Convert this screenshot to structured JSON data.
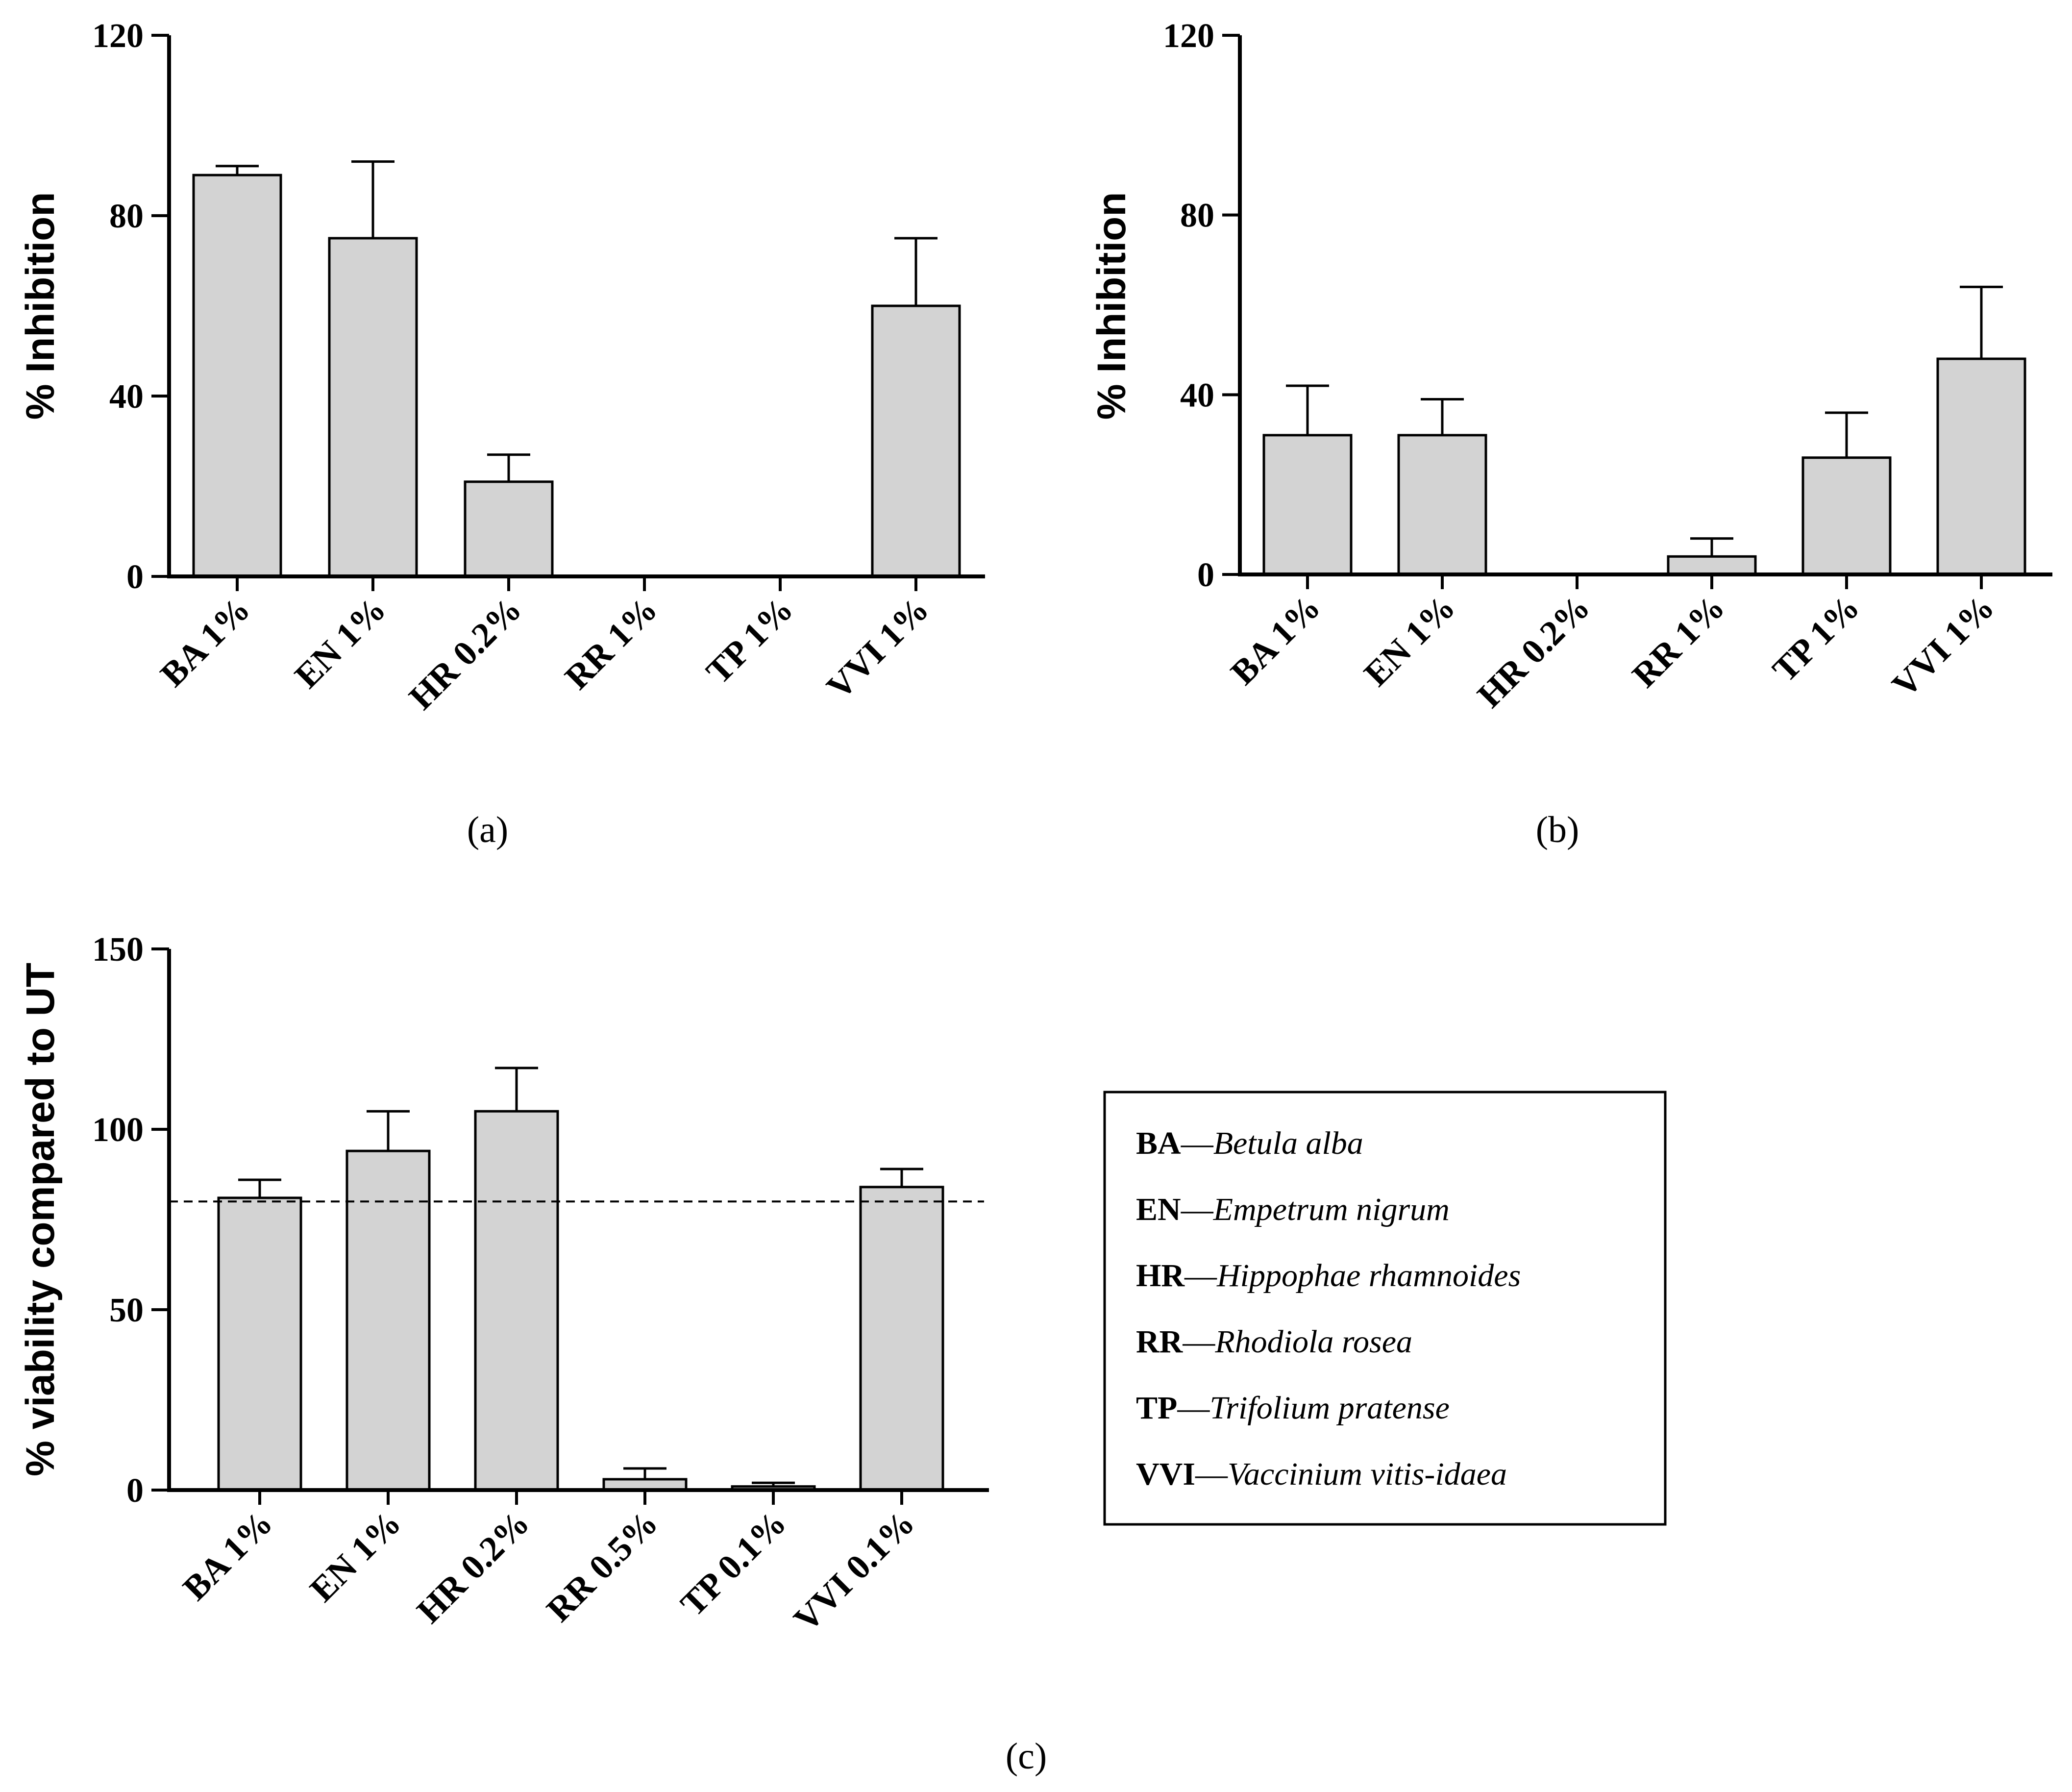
{
  "chart_data": [
    {
      "type": "bar",
      "panel": "(a)",
      "categories": [
        "BA 1%",
        "EN 1%",
        "HR 0.2%",
        "RR 1%",
        "TP 1%",
        "VVI 1%"
      ],
      "values": [
        89,
        75,
        21,
        0,
        0,
        60
      ],
      "errors": [
        2,
        17,
        6,
        0,
        0,
        15
      ],
      "ylabel": "% Inhibition",
      "ylim": [
        0,
        120
      ],
      "yticks": [
        0,
        40,
        80,
        120
      ],
      "grid": false
    },
    {
      "type": "bar",
      "panel": "(b)",
      "categories": [
        "BA 1%",
        "EN 1%",
        "HR 0.2%",
        "RR 1%",
        "TP 1%",
        "VVI 1%"
      ],
      "values": [
        31,
        31,
        0,
        4,
        26,
        48
      ],
      "errors": [
        11,
        8,
        0,
        4,
        10,
        16
      ],
      "ylabel": "% Inhibition",
      "ylim": [
        0,
        120
      ],
      "yticks": [
        0,
        40,
        80,
        120
      ],
      "grid": false
    },
    {
      "type": "bar",
      "panel": "(c)",
      "categories": [
        "BA 1%",
        "EN 1%",
        "HR 0.2%",
        "RR 0.5%",
        "TP 0.1%",
        "VVI 0.1%"
      ],
      "values": [
        81,
        94,
        105,
        3,
        1,
        84
      ],
      "errors": [
        5,
        11,
        12,
        3,
        1,
        5
      ],
      "ylabel": "% viability compared to UT",
      "ylim": [
        0,
        150
      ],
      "yticks": [
        0,
        50,
        100,
        150
      ],
      "reference_line": 80,
      "grid": false
    }
  ],
  "legend": [
    {
      "abbr": "BA",
      "name": "Betula alba"
    },
    {
      "abbr": "EN",
      "name": "Empetrum nigrum"
    },
    {
      "abbr": "HR",
      "name": "Hippophae rhamnoides"
    },
    {
      "abbr": "RR",
      "name": "Rhodiola rosea"
    },
    {
      "abbr": "TP",
      "name": "Trifolium pratense"
    },
    {
      "abbr": "VVI",
      "name": "Vaccinium vitis-idaea"
    }
  ],
  "legend_separator": "—",
  "colors": {
    "bar_fill": "#d3d3d3",
    "stroke": "#000000"
  }
}
